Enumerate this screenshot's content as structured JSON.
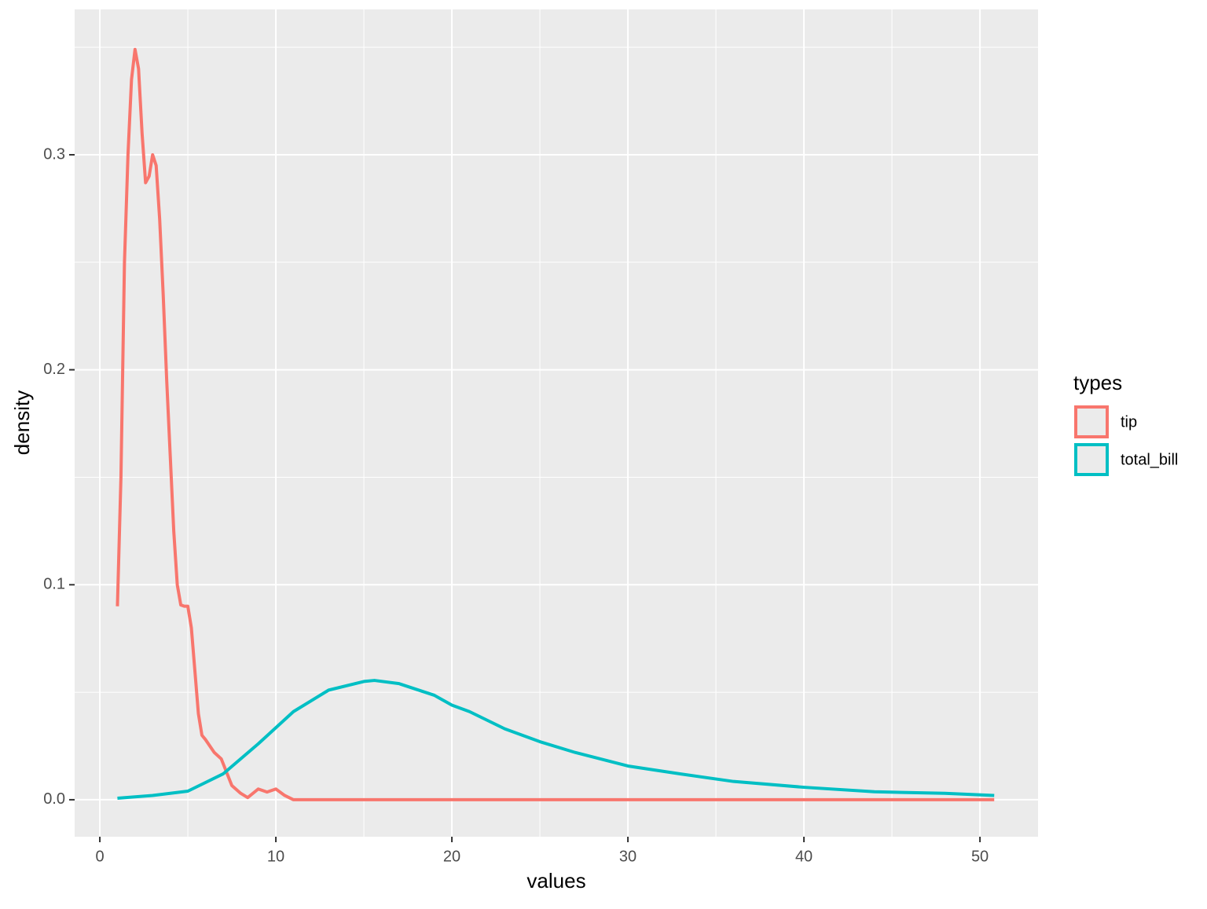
{
  "chart_data": {
    "type": "line",
    "x_label": "values",
    "y_label": "density",
    "legend_title": "types",
    "legend_position": "right",
    "grid": true,
    "xlim": [
      -1.43,
      53.3
    ],
    "ylim": [
      -0.0172,
      0.3676
    ],
    "xticks": [
      0,
      10,
      20,
      30,
      40,
      50
    ],
    "yticks": [
      {
        "value": 0,
        "label": "0.0"
      },
      0.1,
      0.2,
      0.3
    ],
    "series": [
      {
        "name": "tip",
        "color": "#f8766d",
        "x": [
          1.0,
          1.2,
          1.4,
          1.6,
          1.8,
          2.0,
          2.2,
          2.4,
          2.6,
          2.8,
          3.0,
          3.2,
          3.4,
          3.6,
          3.8,
          4.0,
          4.2,
          4.4,
          4.6,
          4.8,
          5.0,
          5.2,
          5.4,
          5.6,
          5.8,
          6.0,
          6.5,
          6.9,
          7.5,
          8.0,
          8.4,
          9.0,
          9.5,
          10.0,
          10.5,
          11.0,
          15,
          20,
          30,
          40,
          50.81
        ],
        "values": [
          0.09,
          0.15,
          0.25,
          0.3,
          0.335,
          0.349,
          0.34,
          0.31,
          0.287,
          0.29,
          0.3,
          0.295,
          0.27,
          0.235,
          0.195,
          0.16,
          0.125,
          0.1,
          0.0906,
          0.09,
          0.09,
          0.08,
          0.06,
          0.04,
          0.03,
          0.028,
          0.022,
          0.019,
          0.0066,
          0.003,
          0.001,
          0.005,
          0.0036,
          0.005,
          0.002,
          0,
          0,
          0,
          0,
          0,
          0
        ]
      },
      {
        "name": "total_bill",
        "color": "#00bfc4",
        "x": [
          1.0,
          3,
          5,
          7,
          9,
          11,
          13,
          15,
          15.6,
          17,
          19,
          20,
          21,
          23,
          25,
          27,
          30,
          33,
          36,
          40,
          44,
          48,
          50.81
        ],
        "values": [
          0.0007,
          0.002,
          0.004,
          0.012,
          0.026,
          0.041,
          0.051,
          0.055,
          0.0555,
          0.054,
          0.0486,
          0.044,
          0.041,
          0.033,
          0.027,
          0.022,
          0.0157,
          0.012,
          0.0085,
          0.0058,
          0.0037,
          0.003,
          0.002
        ]
      }
    ]
  }
}
